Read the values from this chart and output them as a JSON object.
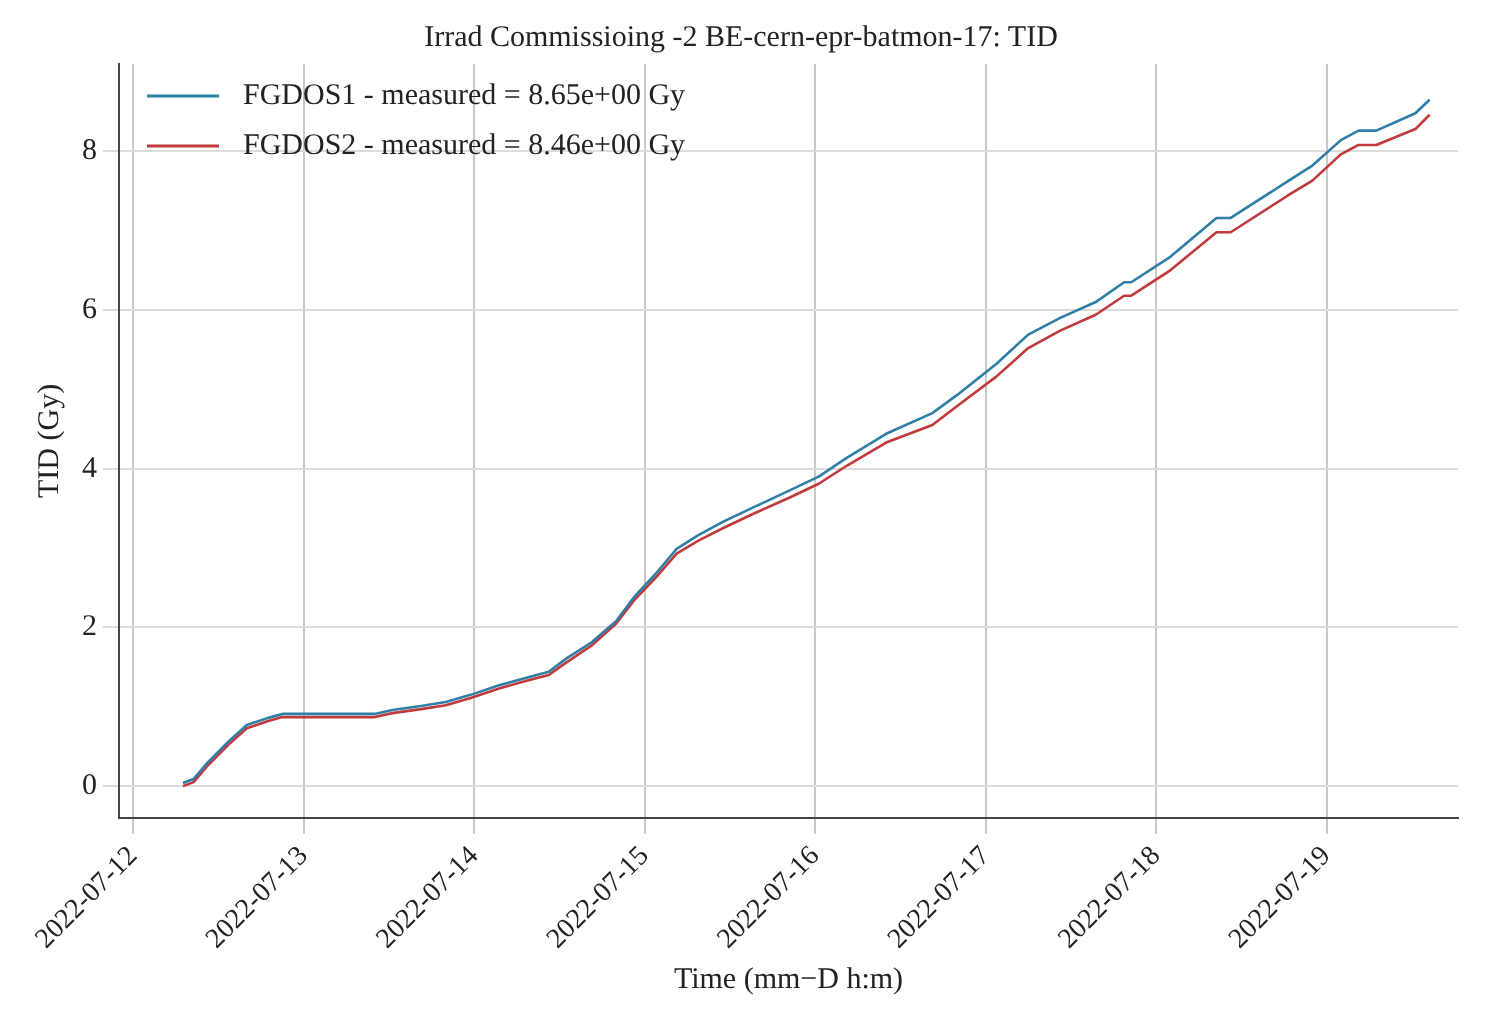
{
  "chart_data": {
    "type": "line",
    "title": "Irrad Commissioing -2 BE-cern-epr-batmon-17: TID",
    "xlabel": "Time (mm−D h:m)",
    "ylabel": "TID (Gy)",
    "x": [
      "2022-07-12T07:00",
      "2022-07-12T08:30",
      "2022-07-12T10:30",
      "2022-07-12T13:30",
      "2022-07-12T16:00",
      "2022-07-12T19:00",
      "2022-07-12T21:00",
      "2022-07-13T00:00",
      "2022-07-13T10:00",
      "2022-07-13T12:30",
      "2022-07-13T16:30",
      "2022-07-13T20:00",
      "2022-07-13T23:30",
      "2022-07-14T03:30",
      "2022-07-14T07:30",
      "2022-07-14T10:30",
      "2022-07-14T13:00",
      "2022-07-14T16:30",
      "2022-07-14T20:00",
      "2022-07-14T22:30",
      "2022-07-15T01:30",
      "2022-07-15T04:30",
      "2022-07-15T07:30",
      "2022-07-15T11:00",
      "2022-07-15T15:00",
      "2022-07-15T20:30",
      "2022-07-16T00:30",
      "2022-07-16T04:30",
      "2022-07-16T10:00",
      "2022-07-16T16:30",
      "2022-07-16T20:00",
      "2022-07-17T01:30",
      "2022-07-17T06:00",
      "2022-07-17T10:30",
      "2022-07-17T15:30",
      "2022-07-17T19:30",
      "2022-07-17T20:30",
      "2022-07-18T02:00",
      "2022-07-18T08:30",
      "2022-07-18T10:30",
      "2022-07-18T18:30",
      "2022-07-18T22:00",
      "2022-07-19T01:30",
      "2022-07-19T02:00",
      "2022-07-19T04:30",
      "2022-07-19T07:00",
      "2022-07-19T12:30",
      "2022-07-19T14:30"
    ],
    "series": [
      {
        "name": "FGDOS1 - measured = 8.65e+00 Gy",
        "color": "#2f7ea6",
        "values": [
          0.04,
          0.09,
          0.3,
          0.57,
          0.77,
          0.86,
          0.91,
          0.91,
          0.91,
          0.96,
          1.01,
          1.06,
          1.15,
          1.27,
          1.37,
          1.44,
          1.61,
          1.81,
          2.08,
          2.38,
          2.67,
          2.99,
          3.16,
          3.33,
          3.5,
          3.73,
          3.9,
          4.14,
          4.44,
          4.7,
          4.93,
          5.32,
          5.69,
          5.9,
          6.1,
          6.35,
          6.35,
          6.67,
          7.16,
          7.16,
          7.62,
          7.82,
          8.1,
          8.14,
          8.26,
          8.26,
          8.48,
          8.65
        ]
      },
      {
        "name": "FGDOS2 - measured = 8.46e+00 Gy",
        "color": "#c0393b",
        "values": [
          0,
          0.05,
          0.26,
          0.53,
          0.73,
          0.82,
          0.87,
          0.87,
          0.87,
          0.92,
          0.97,
          1.02,
          1.11,
          1.23,
          1.33,
          1.4,
          1.56,
          1.77,
          2.05,
          2.34,
          2.62,
          2.93,
          3.09,
          3.25,
          3.42,
          3.64,
          3.81,
          4.04,
          4.33,
          4.55,
          4.79,
          5.16,
          5.52,
          5.74,
          5.94,
          6.18,
          6.18,
          6.5,
          6.98,
          6.98,
          7.44,
          7.63,
          7.92,
          7.96,
          8.08,
          8.08,
          8.28,
          8.46
        ]
      }
    ],
    "xlim": [
      "2022-07-11T22:00",
      "2022-07-19T18:30"
    ],
    "xticks": [
      "2022-07-12",
      "2022-07-13",
      "2022-07-14",
      "2022-07-15",
      "2022-07-16",
      "2022-07-17",
      "2022-07-18",
      "2022-07-19"
    ],
    "ylim": [
      -0.4,
      9.1
    ],
    "yticks": [
      0,
      2,
      4,
      6,
      8
    ],
    "grid": true,
    "legend": "top left",
    "marker": "none",
    "line_style": "solid"
  }
}
